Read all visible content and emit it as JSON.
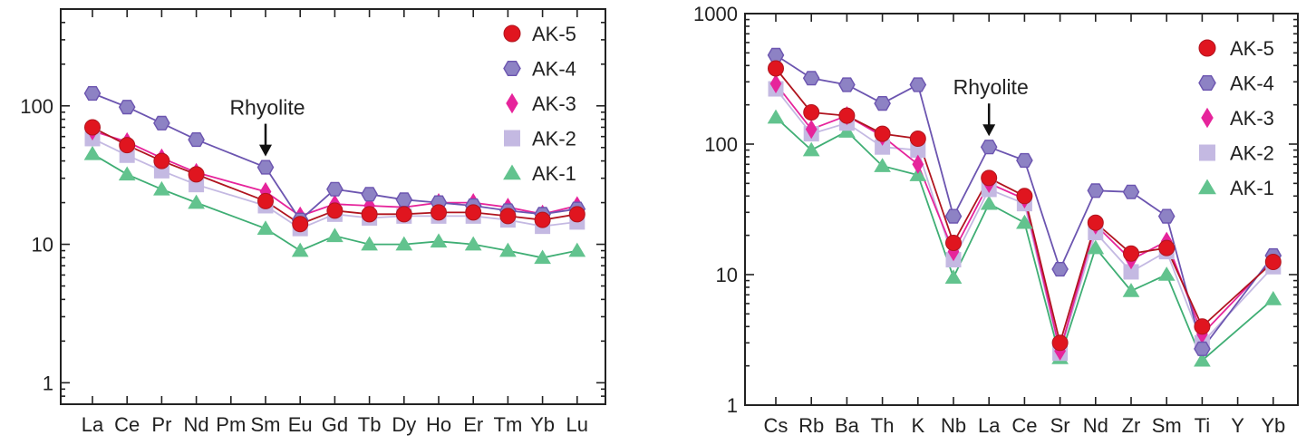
{
  "chart_data": [
    {
      "type": "line",
      "yscale": "log",
      "ylim": [
        0.7,
        500
      ],
      "ytick_labels": [
        "1",
        "10",
        "100"
      ],
      "categories": [
        "La",
        "Ce",
        "Pr",
        "Nd",
        "Pm",
        "Sm",
        "Eu",
        "Gd",
        "Tb",
        "Dy",
        "Ho",
        "Er",
        "Tm",
        "Yb",
        "Lu"
      ],
      "grid": false,
      "legend_position": "top-right",
      "annotation": {
        "text": "Rhyolite",
        "category": "Sm"
      },
      "series": [
        {
          "name": "AK-5",
          "color": "#e0151f",
          "line_color": "#b0151f",
          "marker": "circle",
          "values": [
            70,
            52,
            40,
            32,
            null,
            20.5,
            14,
            17.5,
            16.5,
            16.5,
            17,
            17,
            16,
            15,
            16.5
          ]
        },
        {
          "name": "AK-4",
          "color": "#8d82c4",
          "line_color": "#6c55b0",
          "marker": "hexagon",
          "values": [
            123,
            98,
            75,
            57,
            null,
            36,
            15,
            25,
            23,
            21,
            20,
            19,
            17.5,
            16.5,
            18
          ]
        },
        {
          "name": "AK-3",
          "color": "#e6249b",
          "line_color": "#e6249b",
          "marker": "diamond",
          "values": [
            66,
            55,
            42,
            33,
            null,
            24,
            16,
            19.5,
            19,
            18.5,
            20,
            20,
            18.5,
            16.5,
            19
          ]
        },
        {
          "name": "AK-2",
          "color": "#c4b9e2",
          "line_color": "#c4b9e2",
          "marker": "square",
          "values": [
            58,
            44,
            34,
            27,
            null,
            19,
            13,
            16.5,
            15.5,
            16,
            16,
            16,
            15,
            13.5,
            14.5
          ]
        },
        {
          "name": "AK-1",
          "color": "#62c38e",
          "line_color": "#3fae74",
          "marker": "triangle",
          "values": [
            45,
            32,
            25,
            20,
            null,
            13,
            9,
            11.5,
            10,
            10,
            10.5,
            10,
            9,
            8,
            9
          ]
        }
      ]
    },
    {
      "type": "line",
      "yscale": "log",
      "ylim": [
        1,
        1000
      ],
      "ytick_labels": [
        "1",
        "10",
        "100",
        "1000"
      ],
      "categories": [
        "Cs",
        "Rb",
        "Ba",
        "Th",
        "K",
        "Nb",
        "La",
        "Ce",
        "Sr",
        "Nd",
        "Zr",
        "Sm",
        "Ti",
        "Y",
        "Yb"
      ],
      "grid": false,
      "legend_position": "top-right",
      "annotation": {
        "text": "Rhyolite",
        "category": "La"
      },
      "series": [
        {
          "name": "AK-5",
          "color": "#e0151f",
          "line_color": "#b0151f",
          "marker": "circle",
          "values": [
            380,
            175,
            165,
            120,
            110,
            17.5,
            55,
            40,
            3,
            25,
            14.5,
            16,
            4,
            null,
            12.5
          ]
        },
        {
          "name": "AK-4",
          "color": "#8d82c4",
          "line_color": "#6c55b0",
          "marker": "hexagon",
          "values": [
            480,
            320,
            285,
            205,
            285,
            28,
            95,
            75,
            11,
            44,
            43,
            28,
            2.7,
            null,
            14
          ]
        },
        {
          "name": "AK-3",
          "color": "#e6249b",
          "line_color": "#e6249b",
          "marker": "diamond",
          "values": [
            290,
            130,
            165,
            115,
            70,
            15,
            50,
            38,
            2.6,
            24,
            13,
            18,
            3.5,
            null,
            13
          ]
        },
        {
          "name": "AK-2",
          "color": "#c4b9e2",
          "line_color": "#c4b9e2",
          "marker": "square",
          "values": [
            265,
            120,
            145,
            95,
            90,
            13,
            45,
            35,
            2.5,
            21,
            10.5,
            15,
            3,
            null,
            11.5
          ]
        },
        {
          "name": "AK-1",
          "color": "#62c38e",
          "line_color": "#3fae74",
          "marker": "triangle",
          "values": [
            160,
            90,
            125,
            68,
            58,
            9.5,
            35,
            25,
            2.3,
            16,
            7.5,
            10,
            2.2,
            null,
            6.5
          ]
        }
      ]
    }
  ]
}
